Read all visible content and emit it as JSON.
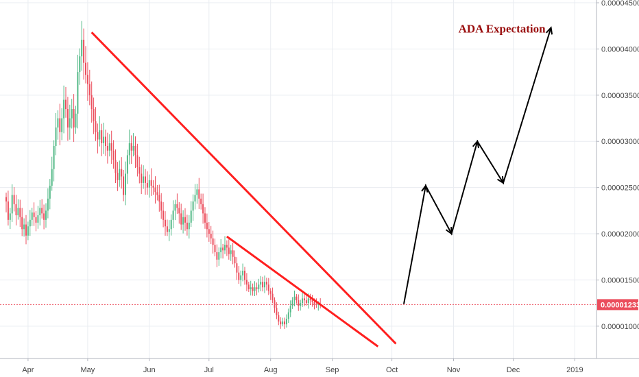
{
  "chart_data": {
    "type": "candlestick",
    "x_axis_labels": [
      "Apr",
      "May",
      "Jun",
      "Jul",
      "Aug",
      "Sep",
      "Oct",
      "Nov",
      "Dec",
      "2019"
    ],
    "y_axis": {
      "ticks": [
        "0.00001000",
        "0.00001500",
        "0.00002000",
        "0.00002500",
        "0.00003000",
        "0.00003500",
        "0.00004000",
        "0.00004500"
      ],
      "range": [
        6.5e-06,
        4.53e-05
      ]
    },
    "current_price": "0.00001233",
    "annotation": "ADA Expectation",
    "grid": true,
    "colors": {
      "up": "#53b987",
      "down": "#eb4d5c",
      "channel": "#ff1f1f",
      "projection": "#000000",
      "price_tag": "#eb4d5c"
    },
    "series": [
      {
        "type": "candles",
        "start_date": "2018-03-21",
        "close": [
          2.35e-05,
          2.15e-05,
          2.22e-05,
          2.42e-05,
          2.32e-05,
          2.2e-05,
          2.28e-05,
          2.18e-05,
          2.05e-05,
          2.1e-05,
          1.98e-05,
          2.08e-05,
          2.15e-05,
          2.23e-05,
          2.18e-05,
          2.12e-05,
          2.2e-05,
          2.28e-05,
          2.22e-05,
          2.15e-05,
          2.25e-05,
          2.38e-05,
          2.52e-05,
          2.7e-05,
          2.95e-05,
          3.15e-05,
          3.25e-05,
          3.1e-05,
          3.25e-05,
          3.45e-05,
          3.35e-05,
          3.15e-05,
          3.25e-05,
          3.35e-05,
          3.15e-05,
          3.3e-05,
          3.75e-05,
          3.92e-05,
          4.1e-05,
          3.85e-05,
          3.72e-05,
          3.62e-05,
          3.5e-05,
          3.35e-05,
          3.22e-05,
          3.1e-05,
          3.02e-05,
          3.12e-05,
          2.98e-05,
          3.05e-05,
          2.95e-05,
          2.9e-05,
          2.98e-05,
          2.9e-05,
          2.8e-05,
          2.66e-05,
          2.58e-05,
          2.7e-05,
          2.62e-05,
          2.42e-05,
          2.65e-05,
          2.85e-05,
          2.98e-05,
          2.9e-05,
          2.95e-05,
          2.85e-05,
          2.72e-05,
          2.65e-05,
          2.55e-05,
          2.62e-05,
          2.55e-05,
          2.5e-05,
          2.58e-05,
          2.52e-05,
          2.5e-05,
          2.45e-05,
          2.42e-05,
          2.35e-05,
          2.25e-05,
          2.15e-05,
          2.08e-05,
          2.02e-05,
          2.05e-05,
          2.15e-05,
          2.25e-05,
          2.32e-05,
          2.28e-05,
          2.22e-05,
          2.1e-05,
          2.18e-05,
          2.12e-05,
          2.05e-05,
          2.12e-05,
          2.25e-05,
          2.35e-05,
          2.42e-05,
          2.48e-05,
          2.38e-05,
          2.32e-05,
          2.22e-05,
          2.12e-05,
          2.05e-05,
          2e-05,
          1.95e-05,
          1.88e-05,
          1.8e-05,
          1.72e-05,
          1.8e-05,
          1.85e-05,
          1.82e-05,
          1.88e-05,
          1.85e-05,
          1.78e-05,
          1.82e-05,
          1.75e-05,
          1.68e-05,
          1.58e-05,
          1.5e-05,
          1.55e-05,
          1.6e-05,
          1.5e-05,
          1.45e-05,
          1.4e-05,
          1.42e-05,
          1.38e-05,
          1.42e-05,
          1.4e-05,
          1.45e-05,
          1.48e-05,
          1.42e-05,
          1.48e-05,
          1.45e-05,
          1.38e-05,
          1.35e-05,
          1.28e-05,
          1.2e-05,
          1.12e-05,
          1.05e-05,
          1.02e-05,
          1.05e-05,
          1.02e-05,
          1.08e-05,
          1.15e-05,
          1.22e-05,
          1.28e-05,
          1.32e-05,
          1.28e-05,
          1.22e-05,
          1.25e-05,
          1.3e-05,
          1.28e-05,
          1.25e-05,
          1.3e-05,
          1.28e-05,
          1.26e-05,
          1.24e-05,
          1.23e-05,
          1.24e-05,
          1.23e-05
        ]
      },
      {
        "name": "",
        "type": "line",
        "x": [
          "2018-05-03",
          "2018-10-03"
        ],
        "y": [
          4.18e-05,
          8.1e-06
        ]
      },
      {
        "name": "",
        "type": "line",
        "x": [
          "2018-07-10",
          "2018-09-24"
        ],
        "y": [
          1.97e-05,
          7.8e-06
        ]
      },
      {
        "name": "",
        "type": "line",
        "x": [
          "2018-10-07",
          "2018-10-18",
          "2018-10-31",
          "2018-11-13",
          "2018-11-26",
          "2018-12-20"
        ],
        "y": [
          1.24e-05,
          2.52e-05,
          2e-05,
          3e-05,
          2.55e-05,
          4.23e-05
        ]
      }
    ]
  }
}
